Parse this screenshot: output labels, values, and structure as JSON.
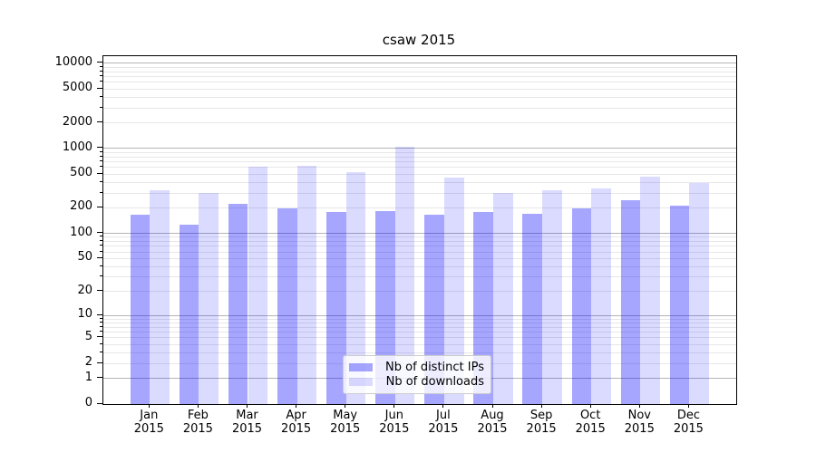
{
  "chart_data": {
    "type": "bar",
    "title": "csaw 2015",
    "categories": [
      "Jan 2015",
      "Feb 2015",
      "Mar 2015",
      "Apr 2015",
      "May 2015",
      "Jun 2015",
      "Jul 2015",
      "Aug 2015",
      "Sep 2015",
      "Oct 2015",
      "Nov 2015",
      "Dec 2015"
    ],
    "xticklabels": [
      [
        "Jan",
        "2015"
      ],
      [
        "Feb",
        "2015"
      ],
      [
        "Mar",
        "2015"
      ],
      [
        "Apr",
        "2015"
      ],
      [
        "May",
        "2015"
      ],
      [
        "Jun",
        "2015"
      ],
      [
        "Jul",
        "2015"
      ],
      [
        "Aug",
        "2015"
      ],
      [
        "Sep",
        "2015"
      ],
      [
        "Oct",
        "2015"
      ],
      [
        "Nov",
        "2015"
      ],
      [
        "Dec",
        "2015"
      ]
    ],
    "series": [
      {
        "name": "Nb of distinct IPs",
        "color": "rgba(0,0,255,0.35)",
        "values": [
          167,
          128,
          224,
          196,
          179,
          185,
          168,
          179,
          170,
          198,
          247,
          213
        ]
      },
      {
        "name": "Nb of downloads",
        "color": "rgba(0,0,255,0.14)",
        "values": [
          326,
          300,
          608,
          627,
          528,
          1041,
          456,
          303,
          320,
          340,
          470,
          396
        ]
      }
    ],
    "xlabel": "",
    "ylabel": "",
    "yscale": "log1p",
    "yticks": [
      0,
      1,
      2,
      5,
      10,
      20,
      50,
      100,
      200,
      500,
      1000,
      2000,
      5000,
      10000
    ],
    "ytick_labels": [
      "0",
      "1",
      "2",
      "5",
      "10",
      "20",
      "50",
      "100",
      "200",
      "500",
      "1000",
      "2000",
      "5000",
      "10000"
    ],
    "minor_ticks": [
      3,
      4,
      6,
      7,
      8,
      9,
      30,
      40,
      60,
      70,
      80,
      90,
      300,
      400,
      600,
      700,
      800,
      900,
      3000,
      4000,
      6000,
      7000,
      8000,
      9000
    ],
    "major_grid_values": [
      1,
      10,
      100,
      1000,
      10000
    ],
    "ylim": [
      0,
      12000
    ],
    "grid": true,
    "legend_position": "lower center inside"
  },
  "colors": {
    "bar_distinct_ips": "rgba(0,0,255,0.35)",
    "bar_downloads": "rgba(0,0,255,0.14)",
    "grid_major": "#b4b4b4",
    "grid_minor": "#e7e7e7",
    "axis": "#000000",
    "legend_border": "#cccccc"
  }
}
